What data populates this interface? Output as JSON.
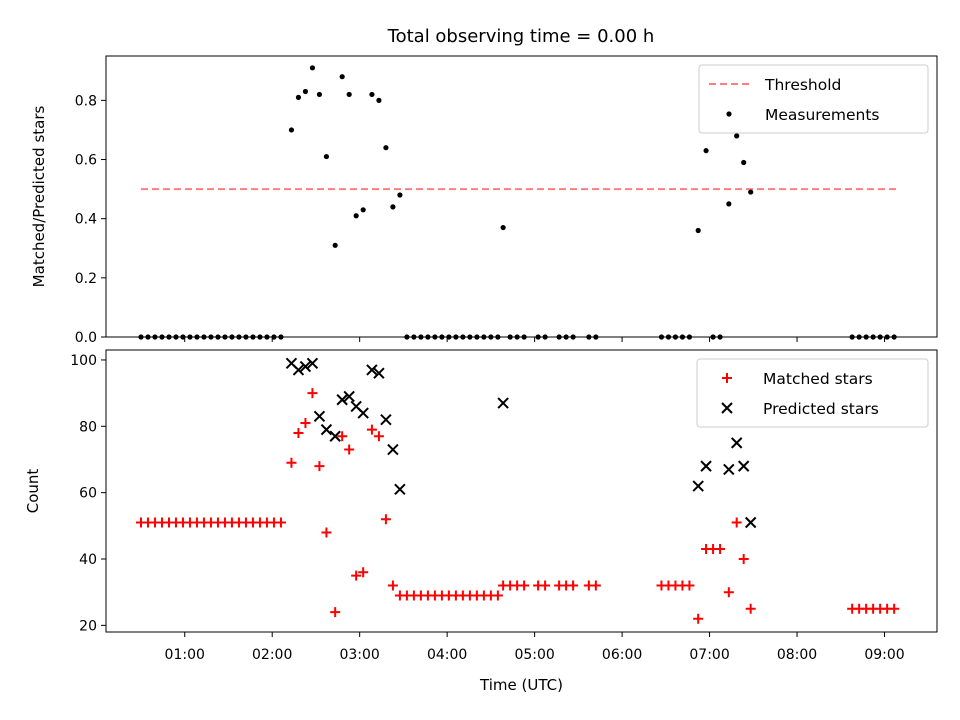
{
  "title": "Total observing time = 0.00 h",
  "chart_data": [
    {
      "type": "scatter",
      "ylabel": "Matched/Predicted stars",
      "xlim": [
        0.1,
        9.6
      ],
      "ylim": [
        0,
        0.95
      ],
      "yticks": [
        0.0,
        0.2,
        0.4,
        0.6,
        0.8
      ],
      "ytick_labels": [
        "0.0",
        "0.2",
        "0.4",
        "0.6",
        "0.8"
      ],
      "grid": false,
      "legend": {
        "position": "top-right",
        "entries": [
          "Threshold",
          "Measurements"
        ]
      },
      "threshold": {
        "name": "Threshold",
        "value": 0.5,
        "x_range": [
          0.5,
          9.15
        ],
        "color": "#ff7f7f",
        "style": "dashed"
      },
      "series": [
        {
          "name": "Measurements",
          "color": "#000000",
          "marker": "dot",
          "x": [
            0.5,
            0.58,
            0.66,
            0.74,
            0.82,
            0.9,
            0.98,
            1.06,
            1.14,
            1.22,
            1.3,
            1.38,
            1.46,
            1.54,
            1.62,
            1.7,
            1.78,
            1.86,
            1.94,
            2.02,
            2.1,
            2.22,
            2.3,
            2.38,
            2.46,
            2.54,
            2.62,
            2.72,
            2.8,
            2.88,
            2.96,
            3.04,
            3.14,
            3.22,
            3.3,
            3.38,
            3.46,
            3.54,
            3.62,
            3.7,
            3.78,
            3.86,
            3.94,
            4.02,
            4.1,
            4.18,
            4.26,
            4.34,
            4.42,
            4.5,
            4.58,
            4.64,
            4.72,
            4.8,
            4.88,
            5.04,
            5.12,
            5.28,
            5.36,
            5.44,
            5.62,
            5.7,
            6.45,
            6.53,
            6.61,
            6.69,
            6.77,
            6.87,
            6.96,
            7.04,
            7.12,
            7.22,
            7.31,
            7.39,
            7.47,
            8.63,
            8.71,
            8.79,
            8.87,
            8.95,
            9.03,
            9.11
          ],
          "y": [
            0,
            0,
            0,
            0,
            0,
            0,
            0,
            0,
            0,
            0,
            0,
            0,
            0,
            0,
            0,
            0,
            0,
            0,
            0,
            0,
            0,
            0.7,
            0.81,
            0.83,
            0.91,
            0.82,
            0.61,
            0.31,
            0.88,
            0.82,
            0.41,
            0.43,
            0.82,
            0.8,
            0.64,
            0.44,
            0.48,
            0,
            0,
            0,
            0,
            0,
            0,
            0,
            0,
            0,
            0,
            0,
            0,
            0,
            0,
            0.37,
            0,
            0,
            0,
            0,
            0,
            0,
            0,
            0,
            0,
            0,
            0,
            0,
            0,
            0,
            0,
            0.36,
            0.63,
            0,
            0,
            0.45,
            0.68,
            0.59,
            0.49,
            0,
            0,
            0,
            0,
            0,
            0,
            0
          ]
        }
      ]
    },
    {
      "type": "scatter",
      "xlabel": "Time (UTC)",
      "ylabel": "Count",
      "xlim": [
        0.1,
        9.6
      ],
      "ylim": [
        18,
        103
      ],
      "xticks": [
        1,
        2,
        3,
        4,
        5,
        6,
        7,
        8,
        9
      ],
      "xtick_labels": [
        "01:00",
        "02:00",
        "03:00",
        "04:00",
        "05:00",
        "06:00",
        "07:00",
        "08:00",
        "09:00"
      ],
      "yticks": [
        20,
        40,
        60,
        80,
        100
      ],
      "ytick_labels": [
        "20",
        "40",
        "60",
        "80",
        "100"
      ],
      "grid": false,
      "legend": {
        "position": "top-right",
        "entries": [
          "Matched stars",
          "Predicted stars"
        ]
      },
      "series": [
        {
          "name": "Matched stars",
          "color": "#ff0000",
          "marker": "plus",
          "x": [
            0.5,
            0.58,
            0.66,
            0.74,
            0.82,
            0.9,
            0.98,
            1.06,
            1.14,
            1.22,
            1.3,
            1.38,
            1.46,
            1.54,
            1.62,
            1.7,
            1.78,
            1.86,
            1.94,
            2.02,
            2.1,
            2.22,
            2.3,
            2.38,
            2.46,
            2.54,
            2.62,
            2.72,
            2.8,
            2.88,
            2.96,
            3.04,
            3.14,
            3.22,
            3.3,
            3.38,
            3.46,
            3.54,
            3.62,
            3.7,
            3.78,
            3.86,
            3.94,
            4.02,
            4.1,
            4.18,
            4.26,
            4.34,
            4.42,
            4.5,
            4.58,
            4.64,
            4.72,
            4.8,
            4.88,
            5.04,
            5.12,
            5.28,
            5.36,
            5.44,
            5.62,
            5.7,
            6.45,
            6.53,
            6.61,
            6.69,
            6.77,
            6.87,
            6.96,
            7.04,
            7.12,
            7.22,
            7.31,
            7.39,
            7.47,
            8.63,
            8.71,
            8.79,
            8.87,
            8.95,
            9.03,
            9.11
          ],
          "y": [
            51,
            51,
            51,
            51,
            51,
            51,
            51,
            51,
            51,
            51,
            51,
            51,
            51,
            51,
            51,
            51,
            51,
            51,
            51,
            51,
            51,
            69,
            78,
            81,
            90,
            68,
            48,
            24,
            77,
            73,
            35,
            36,
            79,
            77,
            52,
            32,
            29,
            29,
            29,
            29,
            29,
            29,
            29,
            29,
            29,
            29,
            29,
            29,
            29,
            29,
            29,
            32,
            32,
            32,
            32,
            32,
            32,
            32,
            32,
            32,
            32,
            32,
            32,
            32,
            32,
            32,
            32,
            22,
            43,
            43,
            43,
            30,
            51,
            40,
            25,
            25,
            25,
            25,
            25,
            25,
            25,
            25
          ]
        },
        {
          "name": "Predicted stars",
          "color": "#000000",
          "marker": "x",
          "x": [
            2.22,
            2.3,
            2.38,
            2.46,
            2.54,
            2.62,
            2.72,
            2.8,
            2.88,
            2.96,
            3.04,
            3.14,
            3.22,
            3.3,
            3.38,
            3.46,
            4.64,
            6.87,
            6.96,
            7.22,
            7.31,
            7.39,
            7.47
          ],
          "y": [
            99,
            97,
            98,
            99,
            83,
            79,
            77,
            88,
            89,
            86,
            84,
            97,
            96,
            82,
            73,
            61,
            87,
            62,
            68,
            67,
            75,
            68,
            51
          ]
        }
      ]
    }
  ]
}
